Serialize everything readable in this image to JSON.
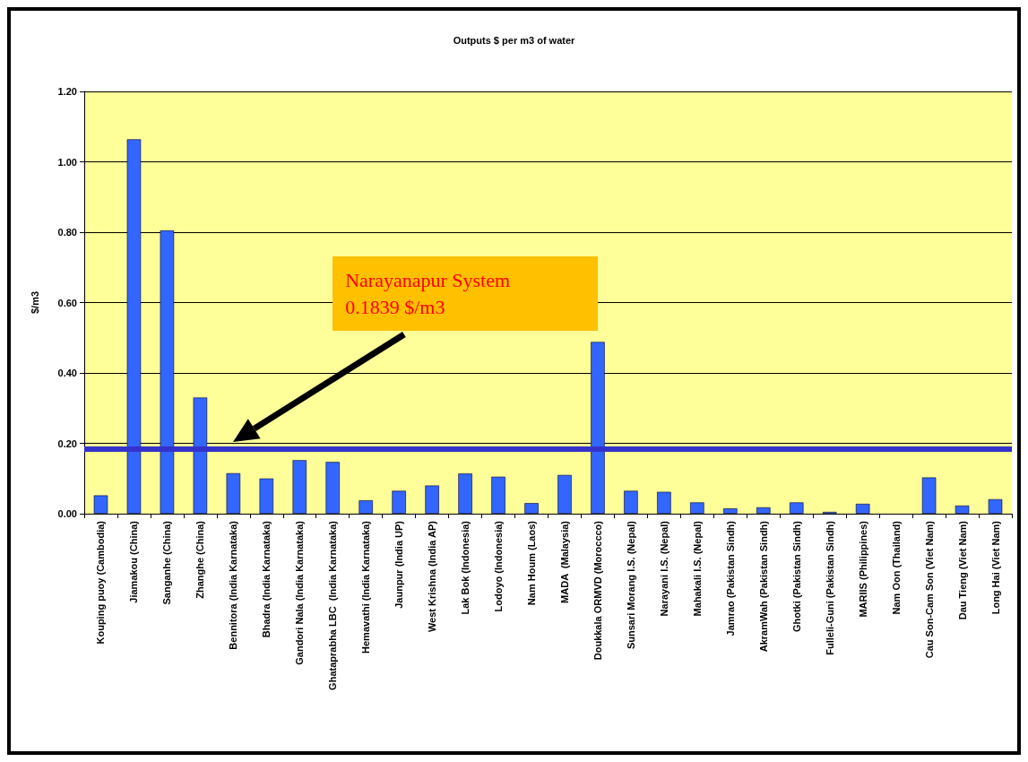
{
  "chart_data": {
    "type": "bar",
    "title": "Outputs $ per m3 of water",
    "ylabel": "$/m3",
    "categories": [
      "Kouping puoy (Cambodia)",
      "Jiamakou (China)",
      "Sanganhe (China)",
      "Zhanghe (China)",
      "Bennitora (India Karnataka)",
      "Bhadra (India Karnataka)",
      "Gandori Nala (India Karnataka)",
      "Ghataprabha LBC  (India Karnataka)",
      "Hemavathi (India Karnataka)",
      "Jaunpur (India UP)",
      "West Krishna (India AP)",
      "Lak Bok (Indonesia)",
      "Lodoyo (Indonesia)",
      "Nam Houm (Laos)",
      "MADA  (Malaysia)",
      "Doukkala ORMVD (Moroccco)",
      "Sunsari Morang I.S. (Nepal)",
      "Narayani I.S. (Nepal)",
      "Mahakali I.S. (Nepal)",
      "Jamrao (Pakistan Sindh)",
      "AkramWah (Pakistan Sindh)",
      "Ghotki (Pakistan Sindh)",
      "Fulleli-Guni (Pakistan Sindh)",
      "MARIIS (Philippines)",
      "Nam Oon (Thailand)",
      "Cau Son-Cam Son (Viet Nam)",
      "Dau Tieng (Viet Nam)",
      "Long Hai (Viet Nam)"
    ],
    "values": [
      0.052,
      1.064,
      0.805,
      0.33,
      0.115,
      0.1,
      0.152,
      0.147,
      0.038,
      0.065,
      0.08,
      0.114,
      0.105,
      0.03,
      0.11,
      0.488,
      0.065,
      0.062,
      0.032,
      0.015,
      0.018,
      0.032,
      0.005,
      0.028,
      0,
      0.103,
      0.023,
      0.041
    ],
    "color": "#3366ff",
    "ylim": [
      0,
      1.2
    ],
    "yticks": [
      {
        "value": 0,
        "label": "0.00"
      },
      {
        "value": 0.2,
        "label": "0.20"
      },
      {
        "value": 0.4,
        "label": "0.40"
      },
      {
        "value": 0.6,
        "label": "0.60"
      },
      {
        "value": 0.8,
        "label": "0.80"
      },
      {
        "value": 1,
        "label": "1.00"
      },
      {
        "value": 1.2,
        "label": "1.20"
      }
    ],
    "grid": "y",
    "ref_lines": [
      {
        "axis": "y",
        "value": 0.1839,
        "color": "#3333cc"
      }
    ],
    "annotations": [
      "Narayanapur System\n0.1839 $/m3"
    ]
  }
}
